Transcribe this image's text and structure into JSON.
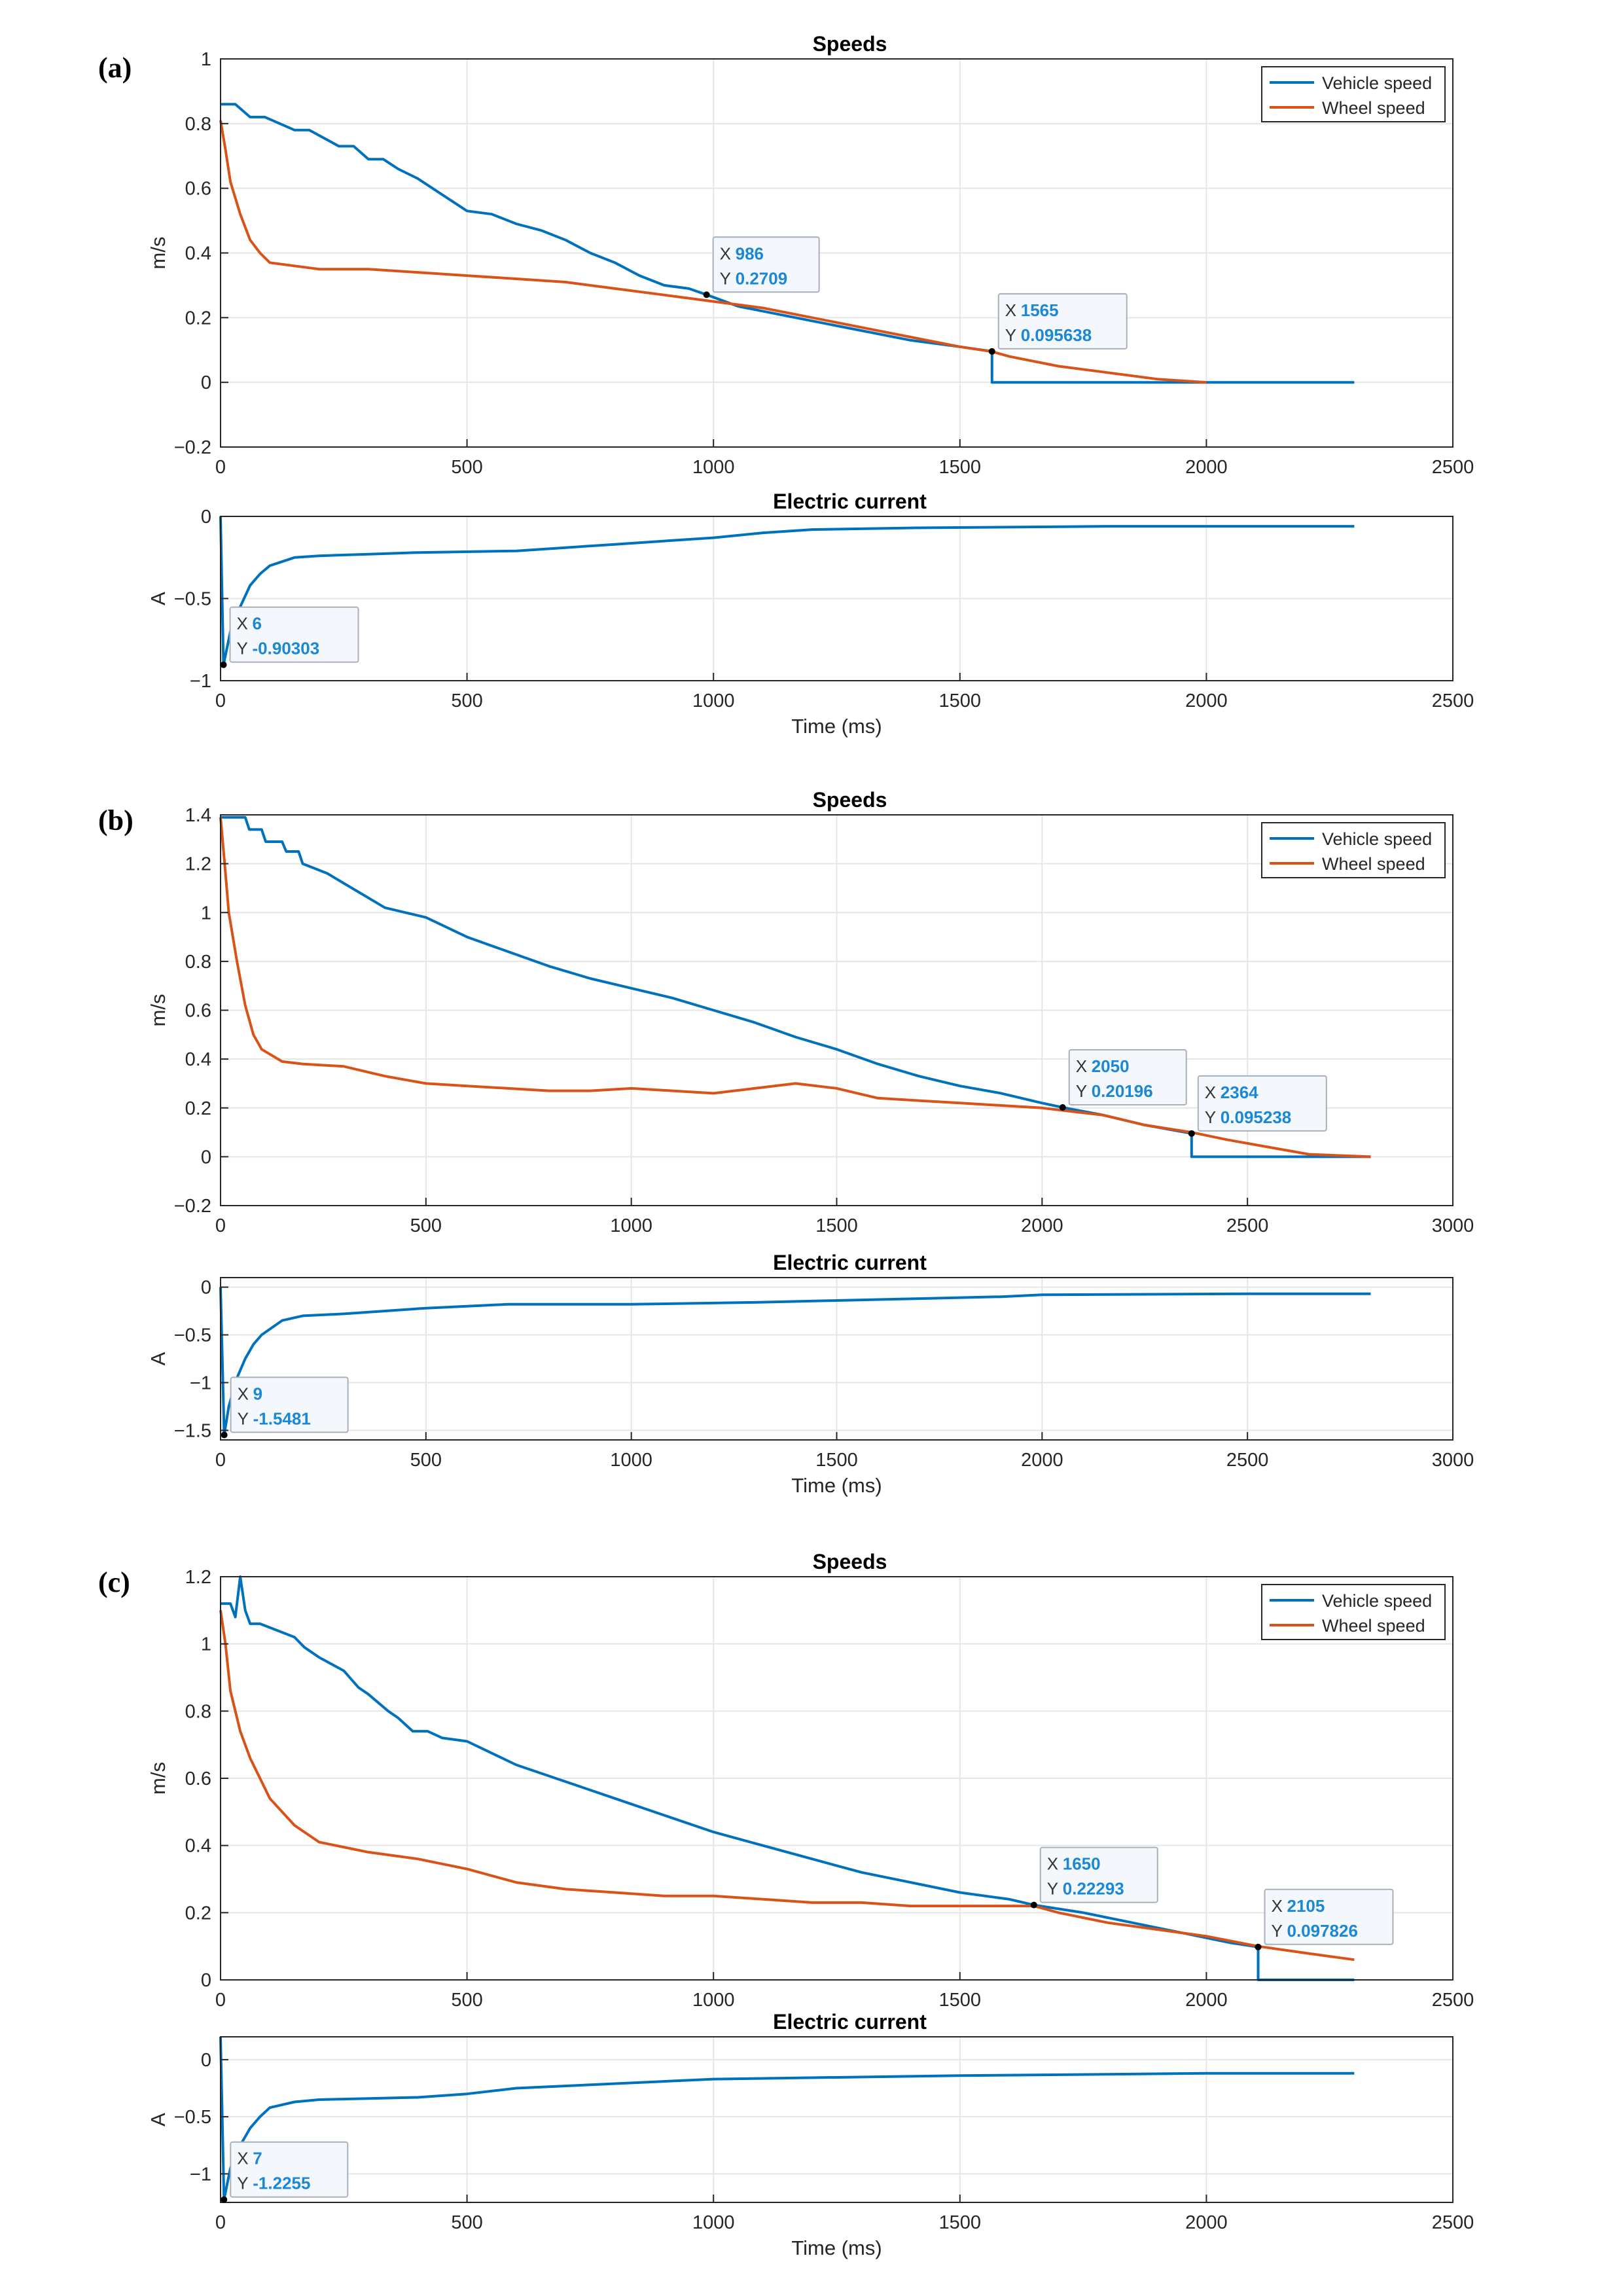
{
  "colors": {
    "vehicle": "#0072BD",
    "wheel": "#D95319",
    "grid": "#E6E6E6",
    "axis": "#262626",
    "tip_value": "#1A88D4"
  },
  "common": {
    "speed_ylabel": "m/s",
    "current_ylabel": "A",
    "xlabel": "Time (ms)",
    "speed_title": "Speeds",
    "current_title": "Electric current",
    "legend": [
      "Vehicle speed",
      "Wheel speed"
    ]
  },
  "chart_data": [
    {
      "panel": "(a)",
      "type": "line",
      "title": "Speeds",
      "xlabel": "",
      "ylabel": "m/s",
      "xlim": [
        0,
        2500
      ],
      "ylim": [
        -0.2,
        1
      ],
      "xticks": [
        0,
        500,
        1000,
        1500,
        2000,
        2500
      ],
      "yticks": [
        -0.2,
        0,
        0.2,
        0.4,
        0.6,
        0.8,
        1
      ],
      "ytick_labels": [
        "−0.2",
        "0",
        "0.2",
        "0.4",
        "0.6",
        "0.8",
        "1"
      ],
      "legend": "top-right",
      "series": [
        {
          "name": "Vehicle speed",
          "x": [
            0,
            30,
            60,
            90,
            150,
            180,
            240,
            270,
            300,
            330,
            360,
            400,
            450,
            500,
            550,
            600,
            650,
            700,
            750,
            800,
            850,
            900,
            950,
            986,
            1050,
            1100,
            1200,
            1300,
            1400,
            1500,
            1565,
            1565,
            2300
          ],
          "y": [
            0.86,
            0.86,
            0.82,
            0.82,
            0.78,
            0.78,
            0.73,
            0.73,
            0.69,
            0.69,
            0.66,
            0.63,
            0.58,
            0.53,
            0.52,
            0.49,
            0.47,
            0.44,
            0.4,
            0.37,
            0.33,
            0.3,
            0.29,
            0.2709,
            0.235,
            0.22,
            0.19,
            0.16,
            0.13,
            0.11,
            0.095638,
            0.0,
            0.0
          ]
        },
        {
          "name": "Wheel speed",
          "x": [
            0,
            10,
            20,
            40,
            60,
            80,
            100,
            150,
            200,
            300,
            400,
            500,
            600,
            700,
            800,
            900,
            1000,
            1100,
            1200,
            1300,
            1400,
            1500,
            1565,
            1600,
            1700,
            1800,
            1900,
            2000
          ],
          "y": [
            0.81,
            0.72,
            0.62,
            0.52,
            0.44,
            0.4,
            0.37,
            0.36,
            0.35,
            0.35,
            0.34,
            0.33,
            0.32,
            0.31,
            0.29,
            0.27,
            0.25,
            0.23,
            0.2,
            0.17,
            0.14,
            0.11,
            0.095,
            0.08,
            0.05,
            0.03,
            0.01,
            0.0
          ]
        }
      ],
      "datatips": [
        {
          "x_label": "X",
          "x_value": "986",
          "y_label": "Y",
          "y_value": "0.2709",
          "x": 986,
          "y": 0.2709
        },
        {
          "x_label": "X",
          "x_value": "1565",
          "y_label": "Y",
          "y_value": "0.095638",
          "x": 1565,
          "y": 0.095638
        }
      ]
    },
    {
      "panel": "(a)",
      "type": "line",
      "title": "Electric current",
      "xlabel": "Time (ms)",
      "ylabel": "A",
      "xlim": [
        0,
        2500
      ],
      "ylim": [
        -1,
        0
      ],
      "xticks": [
        0,
        500,
        1000,
        1500,
        2000,
        2500
      ],
      "yticks": [
        -1,
        -0.5,
        0
      ],
      "ytick_labels": [
        "−1",
        "−0.5",
        "0"
      ],
      "series": [
        {
          "name": "Electric current",
          "x": [
            0,
            6,
            20,
            40,
            60,
            80,
            100,
            150,
            200,
            300,
            400,
            600,
            700,
            800,
            900,
            1000,
            1100,
            1200,
            1400,
            1800,
            2000,
            2300
          ],
          "y": [
            0,
            -0.90303,
            -0.7,
            -0.55,
            -0.42,
            -0.35,
            -0.3,
            -0.25,
            -0.24,
            -0.23,
            -0.22,
            -0.21,
            -0.19,
            -0.17,
            -0.15,
            -0.13,
            -0.1,
            -0.08,
            -0.07,
            -0.06,
            -0.06,
            -0.06
          ]
        }
      ],
      "datatips": [
        {
          "x_label": "X",
          "x_value": "6",
          "y_label": "Y",
          "y_value": "-0.90303",
          "x": 6,
          "y": -0.90303
        }
      ]
    },
    {
      "panel": "(b)",
      "type": "line",
      "title": "Speeds",
      "xlabel": "",
      "ylabel": "m/s",
      "xlim": [
        0,
        3000
      ],
      "ylim": [
        -0.2,
        1.4
      ],
      "xticks": [
        0,
        500,
        1000,
        1500,
        2000,
        2500,
        3000
      ],
      "yticks": [
        -0.2,
        0,
        0.2,
        0.4,
        0.6,
        0.8,
        1,
        1.2,
        1.4
      ],
      "ytick_labels": [
        "−0.2",
        "0",
        "0.2",
        "0.4",
        "0.6",
        "0.8",
        "1",
        "1.2",
        "1.4"
      ],
      "legend": "top-right",
      "series": [
        {
          "name": "Vehicle speed",
          "x": [
            0,
            60,
            70,
            100,
            110,
            150,
            160,
            190,
            200,
            260,
            300,
            360,
            400,
            450,
            500,
            600,
            700,
            800,
            900,
            1000,
            1100,
            1200,
            1300,
            1400,
            1500,
            1600,
            1700,
            1800,
            1900,
            2000,
            2050,
            2150,
            2250,
            2364,
            2364,
            2800
          ],
          "y": [
            1.39,
            1.39,
            1.34,
            1.34,
            1.29,
            1.29,
            1.25,
            1.25,
            1.2,
            1.16,
            1.12,
            1.06,
            1.02,
            1.0,
            0.98,
            0.9,
            0.84,
            0.78,
            0.73,
            0.69,
            0.65,
            0.6,
            0.55,
            0.49,
            0.44,
            0.38,
            0.33,
            0.29,
            0.26,
            0.22,
            0.20196,
            0.17,
            0.13,
            0.095238,
            0.0,
            0.0
          ]
        },
        {
          "name": "Wheel speed",
          "x": [
            0,
            10,
            20,
            40,
            60,
            80,
            100,
            150,
            200,
            300,
            400,
            500,
            600,
            700,
            800,
            900,
            1000,
            1100,
            1200,
            1300,
            1400,
            1500,
            1600,
            1700,
            1800,
            1900,
            2000,
            2050,
            2150,
            2250,
            2364,
            2450,
            2550,
            2650,
            2800
          ],
          "y": [
            1.39,
            1.2,
            1.0,
            0.8,
            0.62,
            0.5,
            0.44,
            0.39,
            0.38,
            0.37,
            0.33,
            0.3,
            0.29,
            0.28,
            0.27,
            0.27,
            0.28,
            0.27,
            0.26,
            0.28,
            0.3,
            0.28,
            0.24,
            0.23,
            0.22,
            0.21,
            0.2,
            0.19,
            0.17,
            0.13,
            0.1,
            0.07,
            0.04,
            0.01,
            0.0
          ]
        }
      ],
      "datatips": [
        {
          "x_label": "X",
          "x_value": "2050",
          "y_label": "Y",
          "y_value": "0.20196",
          "x": 2050,
          "y": 0.20196
        },
        {
          "x_label": "X",
          "x_value": "2364",
          "y_label": "Y",
          "y_value": "0.095238",
          "x": 2364,
          "y": 0.095238
        }
      ]
    },
    {
      "panel": "(b)",
      "type": "line",
      "title": "Electric current",
      "xlabel": "Time (ms)",
      "ylabel": "A",
      "xlim": [
        0,
        3000
      ],
      "ylim": [
        -1.6,
        0.1
      ],
      "xticks": [
        0,
        500,
        1000,
        1500,
        2000,
        2500,
        3000
      ],
      "yticks": [
        -1.5,
        -1,
        -0.5,
        0
      ],
      "ytick_labels": [
        "−1.5",
        "−1",
        "−0.5",
        "0"
      ],
      "series": [
        {
          "name": "Electric current",
          "x": [
            0,
            9,
            20,
            40,
            60,
            80,
            100,
            150,
            200,
            300,
            500,
            700,
            1000,
            1300,
            1500,
            1700,
            1900,
            2000,
            2500,
            2800
          ],
          "y": [
            0,
            -1.5481,
            -1.25,
            -0.95,
            -0.75,
            -0.6,
            -0.5,
            -0.35,
            -0.3,
            -0.28,
            -0.22,
            -0.18,
            -0.18,
            -0.16,
            -0.14,
            -0.12,
            -0.1,
            -0.08,
            -0.07,
            -0.07
          ]
        }
      ],
      "datatips": [
        {
          "x_label": "X",
          "x_value": "9",
          "y_label": "Y",
          "y_value": "-1.5481",
          "x": 9,
          "y": -1.5481
        }
      ]
    },
    {
      "panel": "(c)",
      "type": "line",
      "title": "Speeds",
      "xlabel": "",
      "ylabel": "m/s",
      "xlim": [
        0,
        2500
      ],
      "ylim": [
        0,
        1.2
      ],
      "xticks": [
        0,
        500,
        1000,
        1500,
        2000,
        2500
      ],
      "yticks": [
        0,
        0.2,
        0.4,
        0.6,
        0.8,
        1,
        1.2
      ],
      "ytick_labels": [
        "0",
        "0.2",
        "0.4",
        "0.6",
        "0.8",
        "1",
        "1.2"
      ],
      "legend": "top-right",
      "series": [
        {
          "name": "Vehicle speed",
          "x": [
            0,
            20,
            30,
            40,
            50,
            60,
            80,
            150,
            170,
            200,
            250,
            280,
            300,
            340,
            360,
            390,
            420,
            450,
            500,
            600,
            700,
            800,
            900,
            1000,
            1100,
            1200,
            1300,
            1400,
            1500,
            1600,
            1650,
            1750,
            1850,
            1950,
            2050,
            2105,
            2105,
            2300
          ],
          "y": [
            1.12,
            1.12,
            1.08,
            1.2,
            1.1,
            1.06,
            1.06,
            1.02,
            0.99,
            0.96,
            0.92,
            0.87,
            0.85,
            0.8,
            0.78,
            0.74,
            0.74,
            0.72,
            0.71,
            0.64,
            0.59,
            0.54,
            0.49,
            0.44,
            0.4,
            0.36,
            0.32,
            0.29,
            0.26,
            0.24,
            0.22293,
            0.2,
            0.17,
            0.14,
            0.11,
            0.097826,
            0.0,
            0.0
          ]
        },
        {
          "name": "Wheel speed",
          "x": [
            0,
            10,
            20,
            40,
            60,
            80,
            100,
            150,
            200,
            300,
            400,
            500,
            600,
            700,
            800,
            900,
            1000,
            1100,
            1200,
            1300,
            1400,
            1500,
            1600,
            1650,
            1700,
            1800,
            1900,
            2000,
            2105,
            2200,
            2300
          ],
          "y": [
            1.1,
            1.0,
            0.86,
            0.74,
            0.66,
            0.6,
            0.54,
            0.46,
            0.41,
            0.38,
            0.36,
            0.33,
            0.29,
            0.27,
            0.26,
            0.25,
            0.25,
            0.24,
            0.23,
            0.23,
            0.22,
            0.22,
            0.22,
            0.22,
            0.2,
            0.17,
            0.15,
            0.13,
            0.1,
            0.08,
            0.06
          ]
        }
      ],
      "datatips": [
        {
          "x_label": "X",
          "x_value": "1650",
          "y_label": "Y",
          "y_value": "0.22293",
          "x": 1650,
          "y": 0.22293
        },
        {
          "x_label": "X",
          "x_value": "2105",
          "y_label": "Y",
          "y_value": "0.097826",
          "x": 2105,
          "y": 0.097826
        }
      ]
    },
    {
      "panel": "(c)",
      "type": "line",
      "title": "Electric current",
      "xlabel": "Time (ms)",
      "ylabel": "A",
      "xlim": [
        0,
        2500
      ],
      "ylim": [
        -1.25,
        0.2
      ],
      "xticks": [
        0,
        500,
        1000,
        1500,
        2000,
        2500
      ],
      "yticks": [
        -1,
        -0.5,
        0
      ],
      "ytick_labels": [
        "−1",
        "−0.5",
        "0"
      ],
      "series": [
        {
          "name": "Electric current",
          "x": [
            0,
            7,
            20,
            40,
            60,
            80,
            100,
            150,
            200,
            300,
            400,
            500,
            600,
            1000,
            1500,
            2000,
            2300
          ],
          "y": [
            0.2,
            -1.2255,
            -0.95,
            -0.75,
            -0.6,
            -0.5,
            -0.42,
            -0.37,
            -0.35,
            -0.34,
            -0.33,
            -0.3,
            -0.25,
            -0.17,
            -0.14,
            -0.12,
            -0.12
          ]
        }
      ],
      "datatips": [
        {
          "x_label": "X",
          "x_value": "7",
          "y_label": "Y",
          "y_value": "-1.2255",
          "x": 7,
          "y": -1.2255
        }
      ]
    }
  ]
}
